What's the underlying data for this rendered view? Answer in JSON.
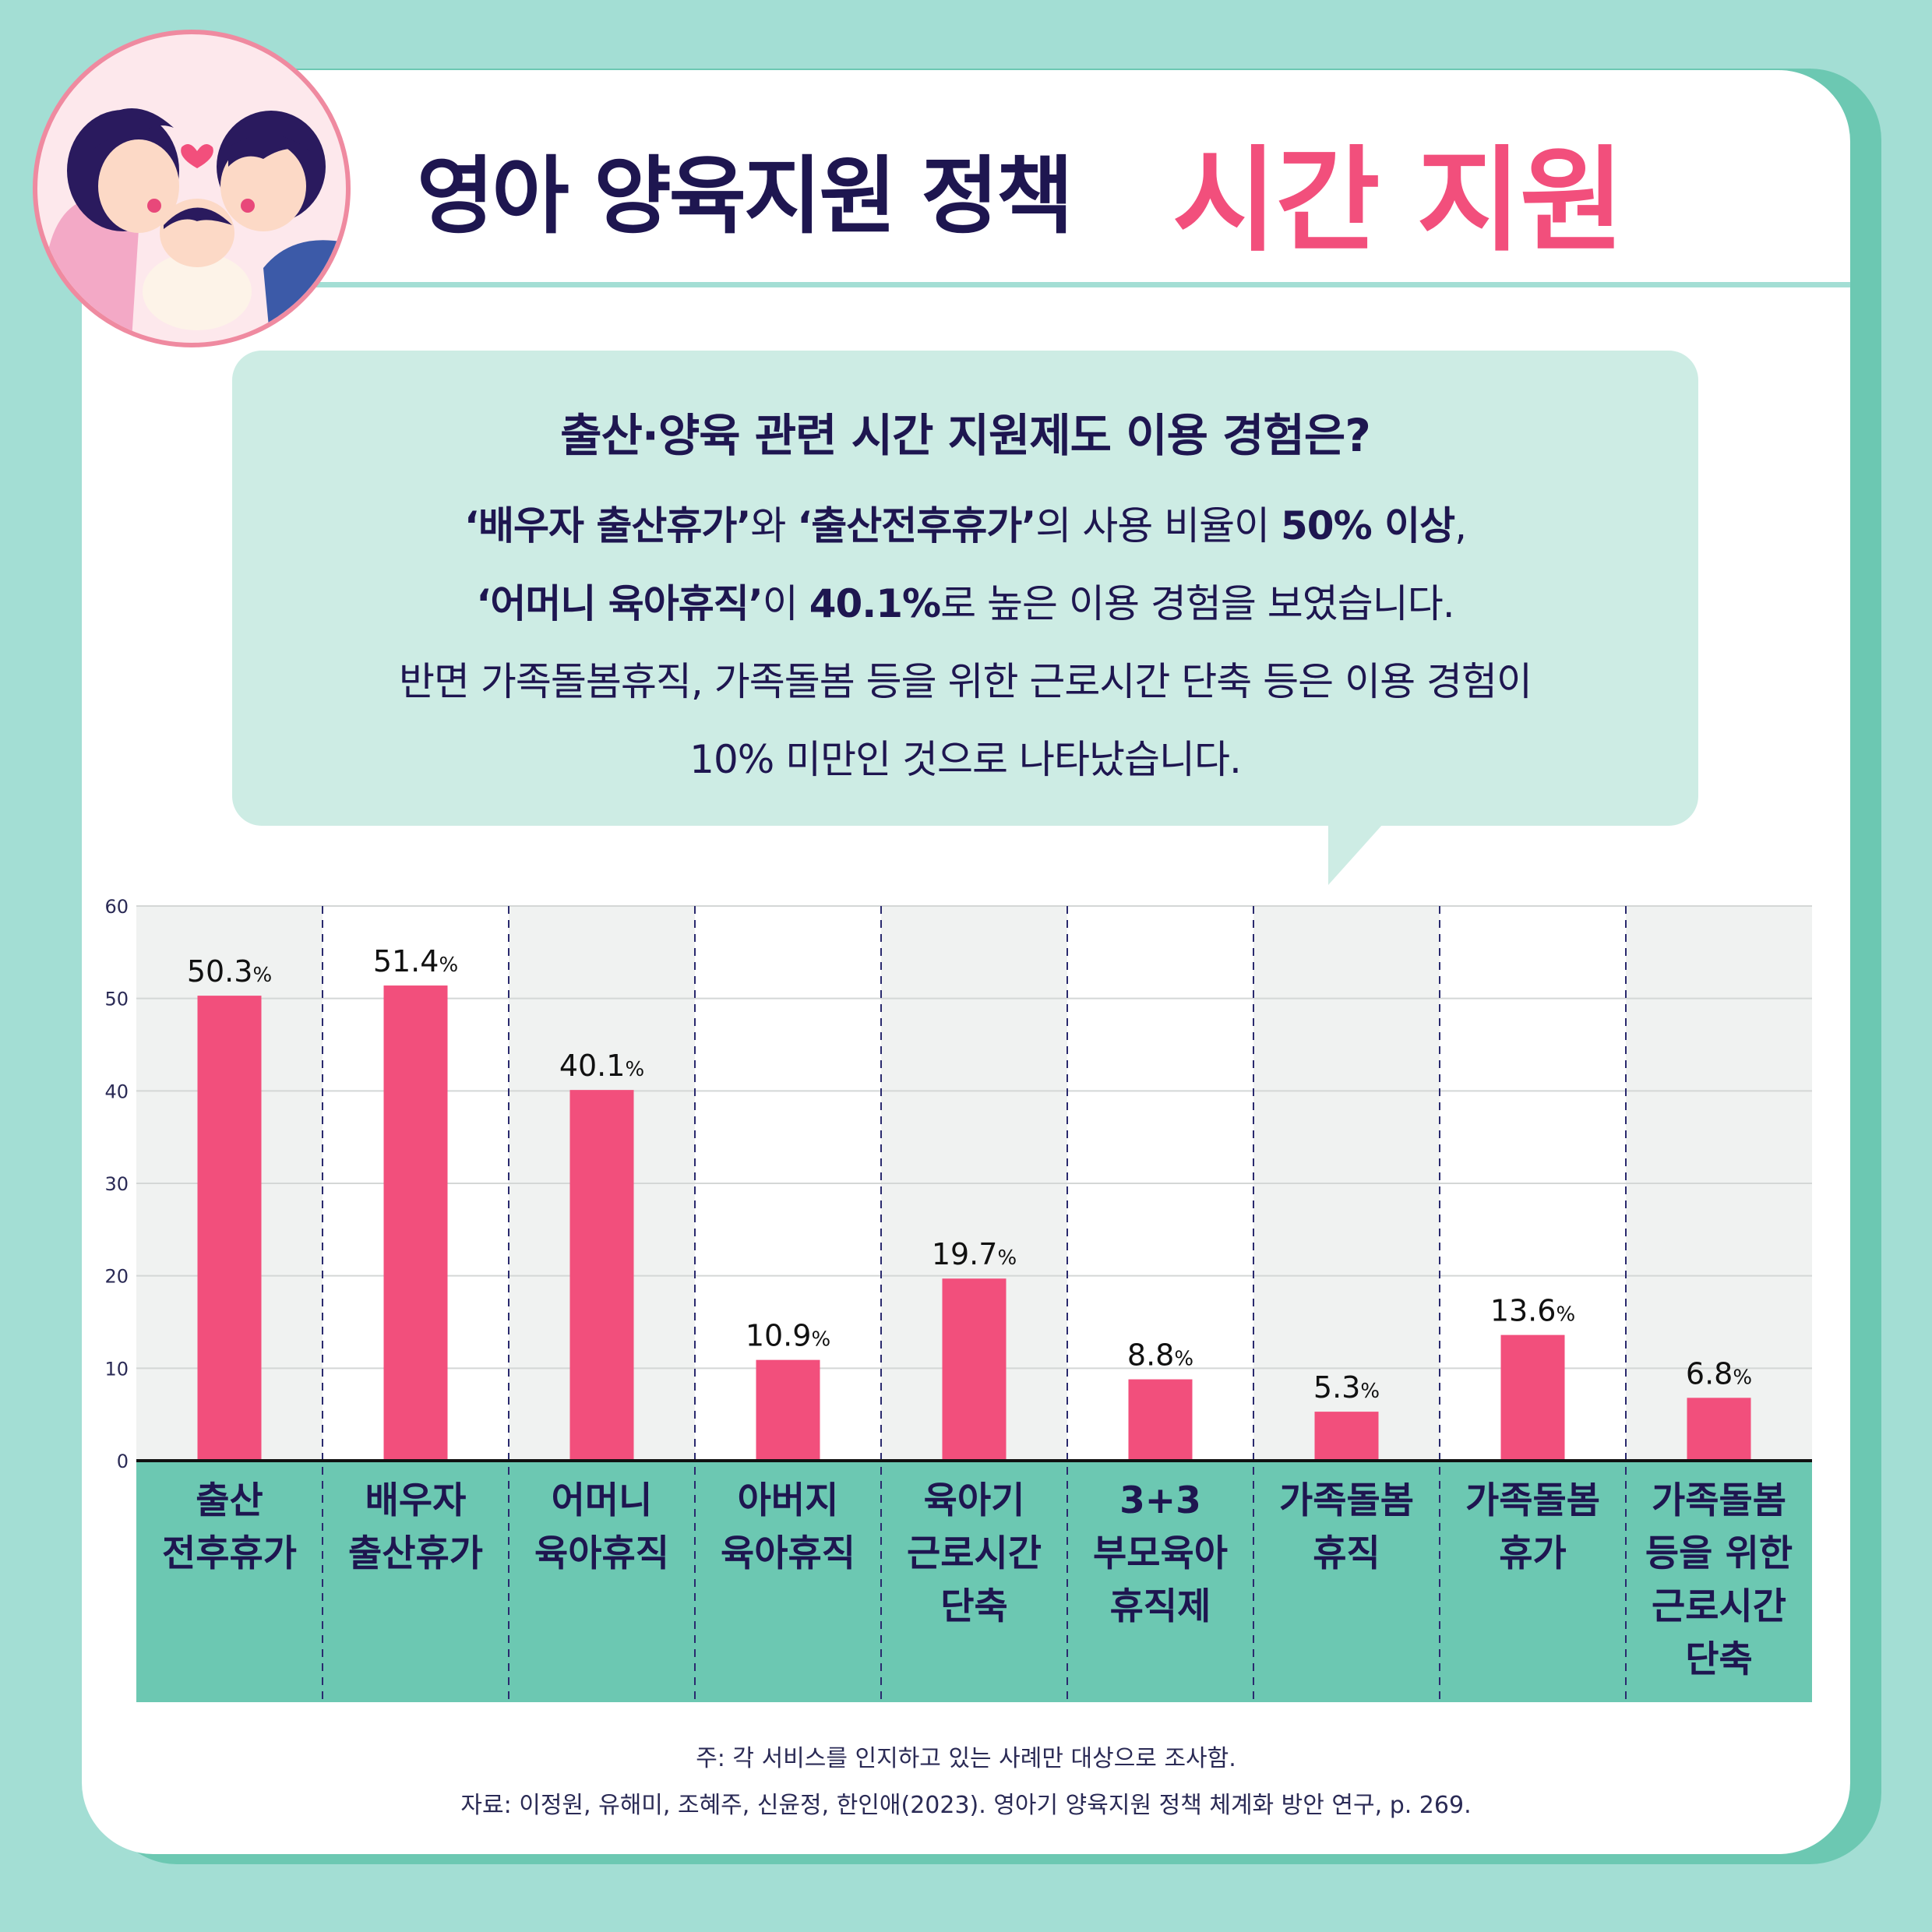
{
  "header": {
    "title_main": "영아 양육지원 정책",
    "title_accent": "시간 지원"
  },
  "bubble": {
    "title": "출산·양육 관련 시간 지원제도 이용 경험은?",
    "line1": [
      {
        "t": "‘배우자 출산휴가’",
        "b": true
      },
      {
        "t": "와 ",
        "b": false
      },
      {
        "t": "‘출산전후휴가’",
        "b": true
      },
      {
        "t": "의 사용 비율이 ",
        "b": false
      },
      {
        "t": "50% 이상",
        "b": true
      },
      {
        "t": ",",
        "b": false
      }
    ],
    "line2": [
      {
        "t": "‘어머니 육아휴직’",
        "b": true
      },
      {
        "t": "이 ",
        "b": false
      },
      {
        "t": "40.1%",
        "b": true
      },
      {
        "t": "로 높은 이용 경험을 보였습니다.",
        "b": false
      }
    ],
    "line3": "반면 가족돌봄휴직, 가족돌봄 등을 위한 근로시간 단축 등은 이용 경험이",
    "line4": "10% 미만인 것으로 나타났습니다."
  },
  "chart_data": {
    "type": "bar",
    "categories": [
      "출산\n전후휴가",
      "배우자\n출산휴가",
      "어머니\n육아휴직",
      "아버지\n육아휴직",
      "육아기\n근로시간\n단축",
      "3+3\n부모육아\n휴직제",
      "가족돌봄\n휴직",
      "가족돌봄\n휴가",
      "가족돌봄\n등을 위한\n근로시간\n단축"
    ],
    "values": [
      50.3,
      51.4,
      40.1,
      10.9,
      19.7,
      8.8,
      5.3,
      13.6,
      6.8
    ],
    "value_labels": [
      "50.3",
      "51.4",
      "40.1",
      "10.9",
      "19.7",
      "8.8",
      "5.3",
      "13.6",
      "6.8"
    ],
    "unit": "%",
    "ylim": [
      0,
      60
    ],
    "yticks": [
      0,
      10,
      20,
      30,
      40,
      50,
      60
    ],
    "grid": true,
    "bar_color": "#f24f7c",
    "category_band_color": "#6cc8b2"
  },
  "notes": {
    "note1": "주: 각 서비스를 인지하고 있는 사례만 대상으로 조사함.",
    "note2": "자료: 이정원, 유해미, 조혜주, 신윤정, 한인애(2023). 영아기 양육지원 정책 체계화 방안 연구, p. 269."
  },
  "colors": {
    "navy": "#1e1650",
    "pink": "#f24f7c",
    "mint": "#a3ded4",
    "teal": "#6cc8b2",
    "bubble": "#cdece4"
  }
}
